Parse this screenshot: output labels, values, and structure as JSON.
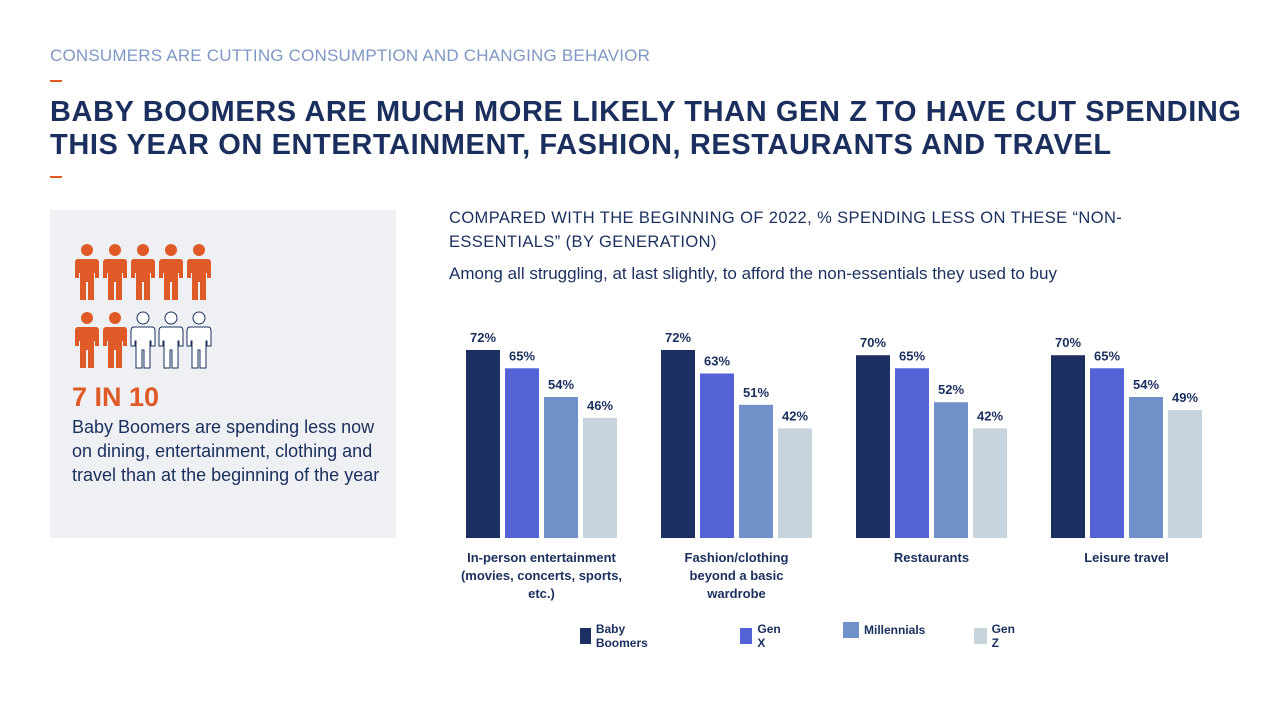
{
  "header": {
    "eyebrow": "CONSUMERS ARE CUTTING CONSUMPTION AND CHANGING BEHAVIOR",
    "headline": "BABY BOOMERS ARE MUCH MORE LIKELY THAN GEN Z TO HAVE CUT SPENDING THIS YEAR ON ENTERTAINMENT, FASHION, RESTAURANTS AND TRAVEL"
  },
  "callout": {
    "icon": "people-icon-grid",
    "people_total": 10,
    "people_highlighted": 7,
    "stat": "7 IN 10",
    "text": "Baby Boomers are spending less now on dining, entertainment, clothing and travel than at the beginning of the year"
  },
  "colors": {
    "accent": "#e05a28",
    "navy": "#1b2f5e",
    "Baby Boomers": "#1c2f62",
    "Gen X": "#5363d6",
    "Millennials": "#6f90c8",
    "Gen Z": "#c7d3dd",
    "panel": "#eef0f3"
  },
  "chart_data": {
    "type": "bar",
    "title": "COMPARED WITH THE BEGINNING OF 2022, % SPENDING LESS ON THESE “NON-ESSENTIALS” (BY GENERATION)",
    "subtitle": "Among all struggling, at last slightly, to afford the non-essentials they used to buy",
    "categories": [
      "In-person entertainment (movies, concerts, sports, etc.)",
      "Fashion/clothing beyond a basic wardrobe",
      "Restaurants",
      "Leisure travel"
    ],
    "category_lines": [
      [
        "In-person entertainment",
        "(movies, concerts, sports,",
        "etc.)"
      ],
      [
        "Fashion/clothing",
        "beyond a basic",
        "wardrobe"
      ],
      [
        "Restaurants"
      ],
      [
        "Leisure travel"
      ]
    ],
    "series": [
      {
        "name": "Baby Boomers",
        "values": [
          72,
          72,
          70,
          70
        ],
        "labels": [
          "72%",
          "72%",
          "70%",
          "70%"
        ]
      },
      {
        "name": "Gen X",
        "values": [
          65,
          63,
          65,
          65
        ],
        "labels": [
          "65%",
          "63%",
          "65%",
          "65%"
        ]
      },
      {
        "name": "Millennials",
        "values": [
          54,
          51,
          52,
          54
        ],
        "labels": [
          "54%",
          "51%",
          "52%",
          "54%"
        ]
      },
      {
        "name": "Gen Z",
        "values": [
          46,
          42,
          42,
          49
        ],
        "labels": [
          "46%",
          "42%",
          "42%",
          "49%"
        ]
      }
    ],
    "ylim": [
      0,
      72
    ],
    "unit": "%",
    "grid": false,
    "legend_position": "bottom"
  }
}
